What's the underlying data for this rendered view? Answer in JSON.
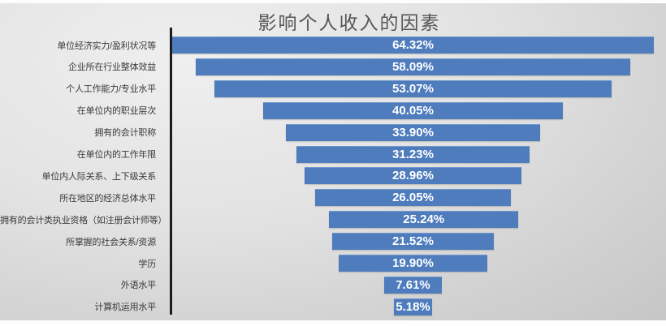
{
  "chart_data": {
    "type": "bar",
    "variant": "centered-horizontal-funnel",
    "orientation": "horizontal",
    "title": "影响个人收入的因素",
    "categories": [
      "单位经济实力/盈利状况等",
      "企业所在行业整体效益",
      "个人工作能力/专业水平",
      "在单位内的职业层次",
      "拥有的会计职称",
      "在单位内的工作年限",
      "单位内人际关系、上下级关系",
      "所在地区的经济总体水平",
      "拥有的会计类执业资格（如注册会计师等）",
      "所掌握的社会关系/资源",
      "学历",
      "外语水平",
      "计算机运用水平"
    ],
    "values": [
      64.32,
      58.09,
      53.07,
      40.05,
      33.9,
      31.23,
      28.96,
      26.05,
      25.24,
      21.52,
      19.9,
      7.61,
      5.18
    ],
    "value_labels": [
      "64.32%",
      "58.09%",
      "53.07%",
      "40.05%",
      "33.90%",
      "31.23%",
      "28.96%",
      "26.05%",
      "25.24%",
      "21.52%",
      "19.90%",
      "7.61%",
      "5.18%"
    ],
    "xlim": [
      0,
      64.32
    ],
    "grid": false,
    "legend": "none",
    "colors": {
      "bar": "#4e7cbd",
      "axis": "#1c1c1c",
      "title": "#565656",
      "category_label": "#3a3a3a",
      "value_label": "#ffffff",
      "background_light": "#efefef",
      "background_dark": "#c6c6c6"
    }
  }
}
